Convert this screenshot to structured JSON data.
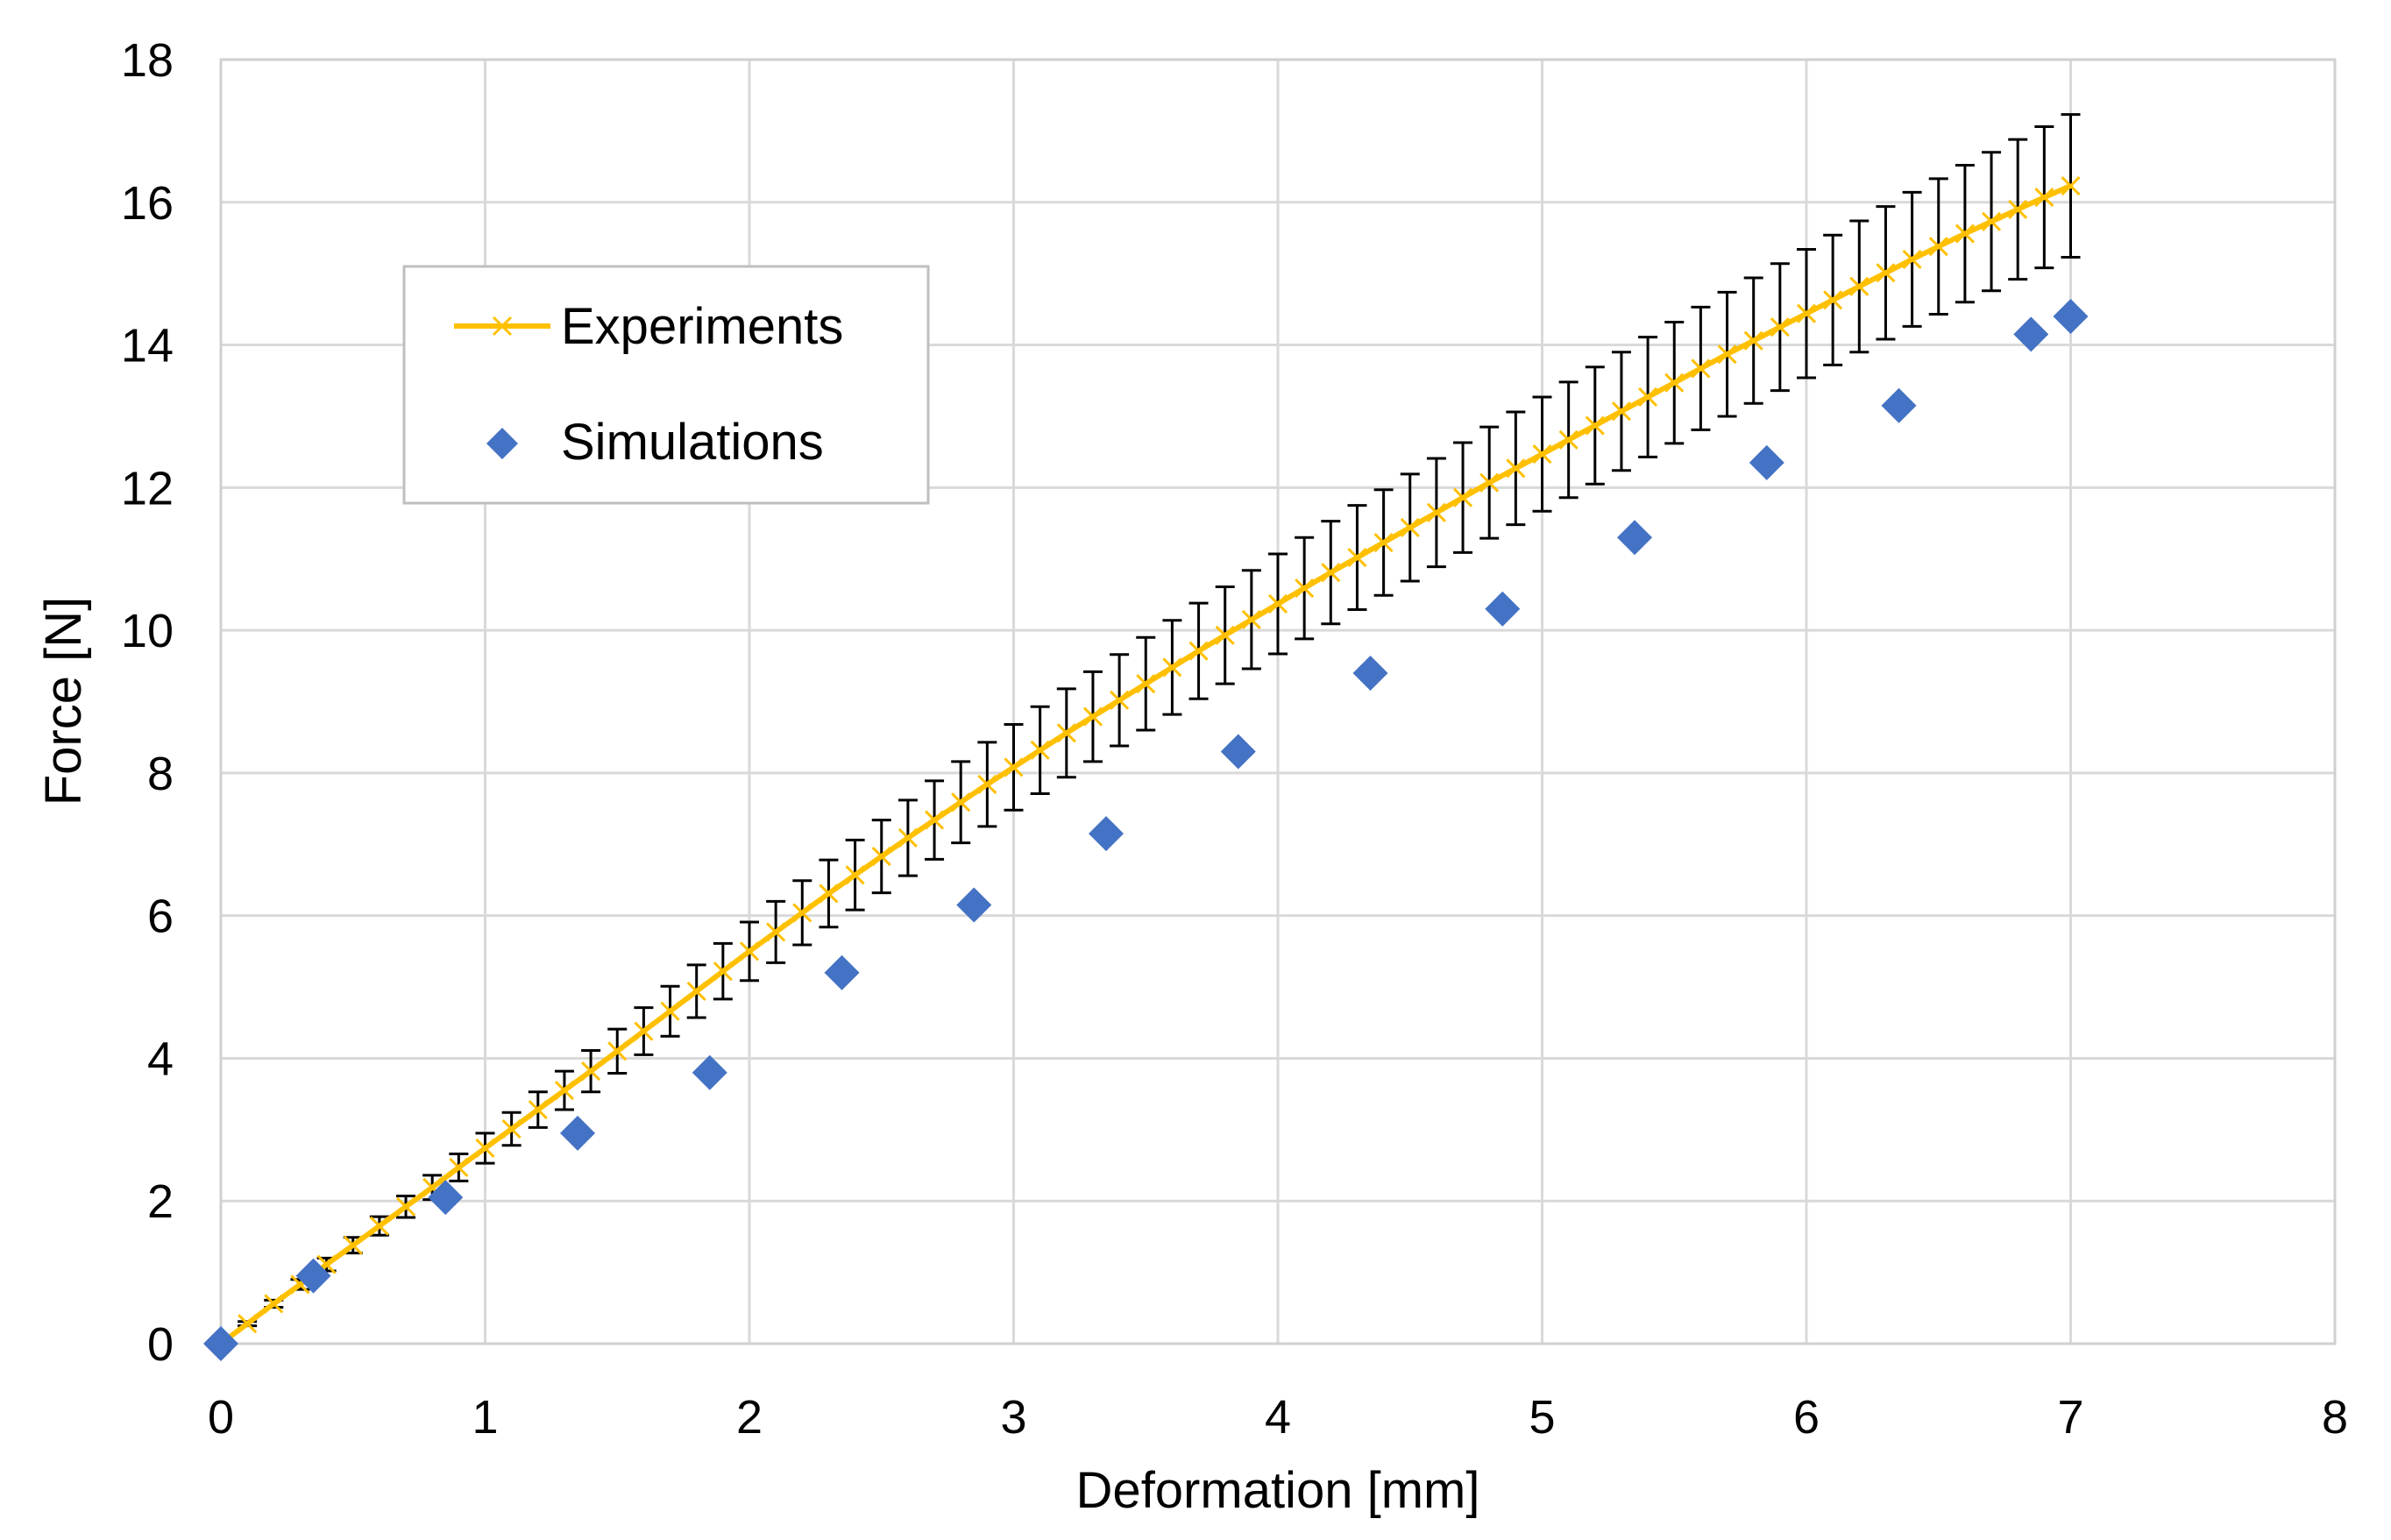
{
  "chart_data": {
    "type": "scatter",
    "title": "",
    "xlabel": "Deformation [mm]",
    "ylabel": "Force [N]",
    "xlim": [
      0,
      8
    ],
    "ylim": [
      0,
      18
    ],
    "xticks": [
      0,
      1,
      2,
      3,
      4,
      5,
      6,
      7,
      8
    ],
    "yticks": [
      0,
      2,
      4,
      6,
      8,
      10,
      12,
      14,
      16,
      18
    ],
    "grid": true,
    "legend_position": "upper-left",
    "series": [
      {
        "name": "Experiments",
        "style": "line-with-x-markers-and-error-bars",
        "color": "#FFC000",
        "error_bar_color": "#000000",
        "x": [
          0.0,
          0.1,
          0.2,
          0.3,
          0.4,
          0.5,
          0.6,
          0.7,
          0.8,
          0.9,
          1.0,
          1.1,
          1.2,
          1.3,
          1.4,
          1.5,
          1.6,
          1.7,
          1.8,
          1.9,
          2.0,
          2.1,
          2.2,
          2.3,
          2.4,
          2.5,
          2.6,
          2.7,
          2.8,
          2.9,
          3.0,
          3.1,
          3.2,
          3.3,
          3.4,
          3.5,
          3.6,
          3.7,
          3.8,
          3.9,
          4.0,
          4.1,
          4.2,
          4.3,
          4.4,
          4.5,
          4.6,
          4.7,
          4.8,
          4.9,
          5.0,
          5.1,
          5.2,
          5.3,
          5.4,
          5.5,
          5.6,
          5.7,
          5.8,
          5.9,
          6.0,
          6.1,
          6.2,
          6.3,
          6.4,
          6.5,
          6.6,
          6.7,
          6.8,
          6.9,
          7.0
        ],
        "values": [
          0.0,
          0.28,
          0.56,
          0.83,
          1.11,
          1.38,
          1.65,
          1.92,
          2.19,
          2.47,
          2.74,
          3.01,
          3.28,
          3.55,
          3.82,
          4.1,
          4.38,
          4.66,
          4.94,
          5.22,
          5.5,
          5.77,
          6.04,
          6.31,
          6.57,
          6.83,
          7.09,
          7.34,
          7.59,
          7.84,
          8.08,
          8.32,
          8.56,
          8.79,
          9.02,
          9.25,
          9.48,
          9.71,
          9.93,
          10.15,
          10.37,
          10.59,
          10.81,
          11.02,
          11.23,
          11.44,
          11.65,
          11.86,
          12.07,
          12.27,
          12.47,
          12.67,
          12.87,
          13.07,
          13.27,
          13.47,
          13.67,
          13.87,
          14.06,
          14.25,
          14.44,
          14.63,
          14.82,
          15.01,
          15.2,
          15.38,
          15.56,
          15.73,
          15.9,
          16.07,
          16.23
        ],
        "errors": [
          0.0,
          0.03,
          0.05,
          0.07,
          0.09,
          0.11,
          0.13,
          0.15,
          0.17,
          0.19,
          0.21,
          0.23,
          0.25,
          0.27,
          0.29,
          0.31,
          0.33,
          0.35,
          0.37,
          0.39,
          0.41,
          0.43,
          0.45,
          0.47,
          0.49,
          0.51,
          0.53,
          0.55,
          0.57,
          0.59,
          0.6,
          0.61,
          0.62,
          0.63,
          0.64,
          0.65,
          0.66,
          0.67,
          0.68,
          0.69,
          0.7,
          0.71,
          0.72,
          0.73,
          0.74,
          0.75,
          0.76,
          0.77,
          0.78,
          0.79,
          0.8,
          0.81,
          0.82,
          0.83,
          0.84,
          0.85,
          0.86,
          0.87,
          0.88,
          0.89,
          0.9,
          0.91,
          0.92,
          0.93,
          0.94,
          0.95,
          0.96,
          0.97,
          0.98,
          0.99,
          1.0
        ]
      },
      {
        "name": "Simulations",
        "style": "diamond-markers",
        "color": "#4472C4",
        "x": [
          0.0,
          0.35,
          0.85,
          1.35,
          1.85,
          2.35,
          2.85,
          3.35,
          3.85,
          4.35,
          4.85,
          5.35,
          5.85,
          6.35,
          6.85,
          7.0
        ],
        "values": [
          0.0,
          0.95,
          2.05,
          2.95,
          3.8,
          5.2,
          6.15,
          7.15,
          8.3,
          9.4,
          10.3,
          11.3,
          12.35,
          13.15,
          14.15,
          14.4
        ]
      }
    ]
  }
}
